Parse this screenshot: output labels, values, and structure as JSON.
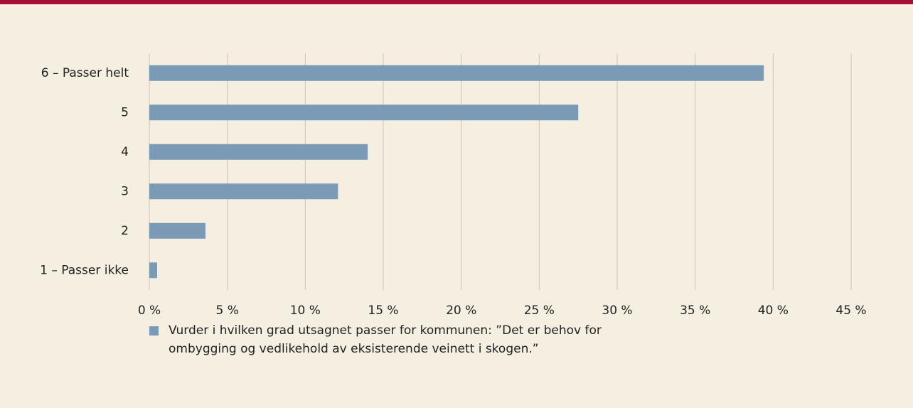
{
  "chart_data": {
    "type": "bar",
    "orientation": "horizontal",
    "categories": [
      "6 – Passer helt",
      "5",
      "4",
      "3",
      "2",
      "1 – Passer ikke"
    ],
    "series": [
      {
        "name": "Vurder i hvilken grad utsagnet passer for kommunen: ”Det er behov for ombygging og vedlikehold av eksisterende veinett i skogen.”",
        "color": "#7b9ab5",
        "values": [
          39.4,
          27.5,
          14.0,
          12.1,
          3.6,
          0.5
        ]
      }
    ],
    "xlim": [
      0,
      45
    ],
    "xticks": [
      {
        "value": 0,
        "label": "0 %"
      },
      {
        "value": 5,
        "label": "5 %"
      },
      {
        "value": 10,
        "label": "10 %"
      },
      {
        "value": 15,
        "label": "15 %"
      },
      {
        "value": 20,
        "label": "20 %"
      },
      {
        "value": 25,
        "label": "25 %"
      },
      {
        "value": 30,
        "label": "30 %"
      },
      {
        "value": 35,
        "label": "35 %"
      },
      {
        "value": 40,
        "label": "40 %"
      },
      {
        "value": 45,
        "label": "45 %"
      }
    ],
    "grid": true
  }
}
